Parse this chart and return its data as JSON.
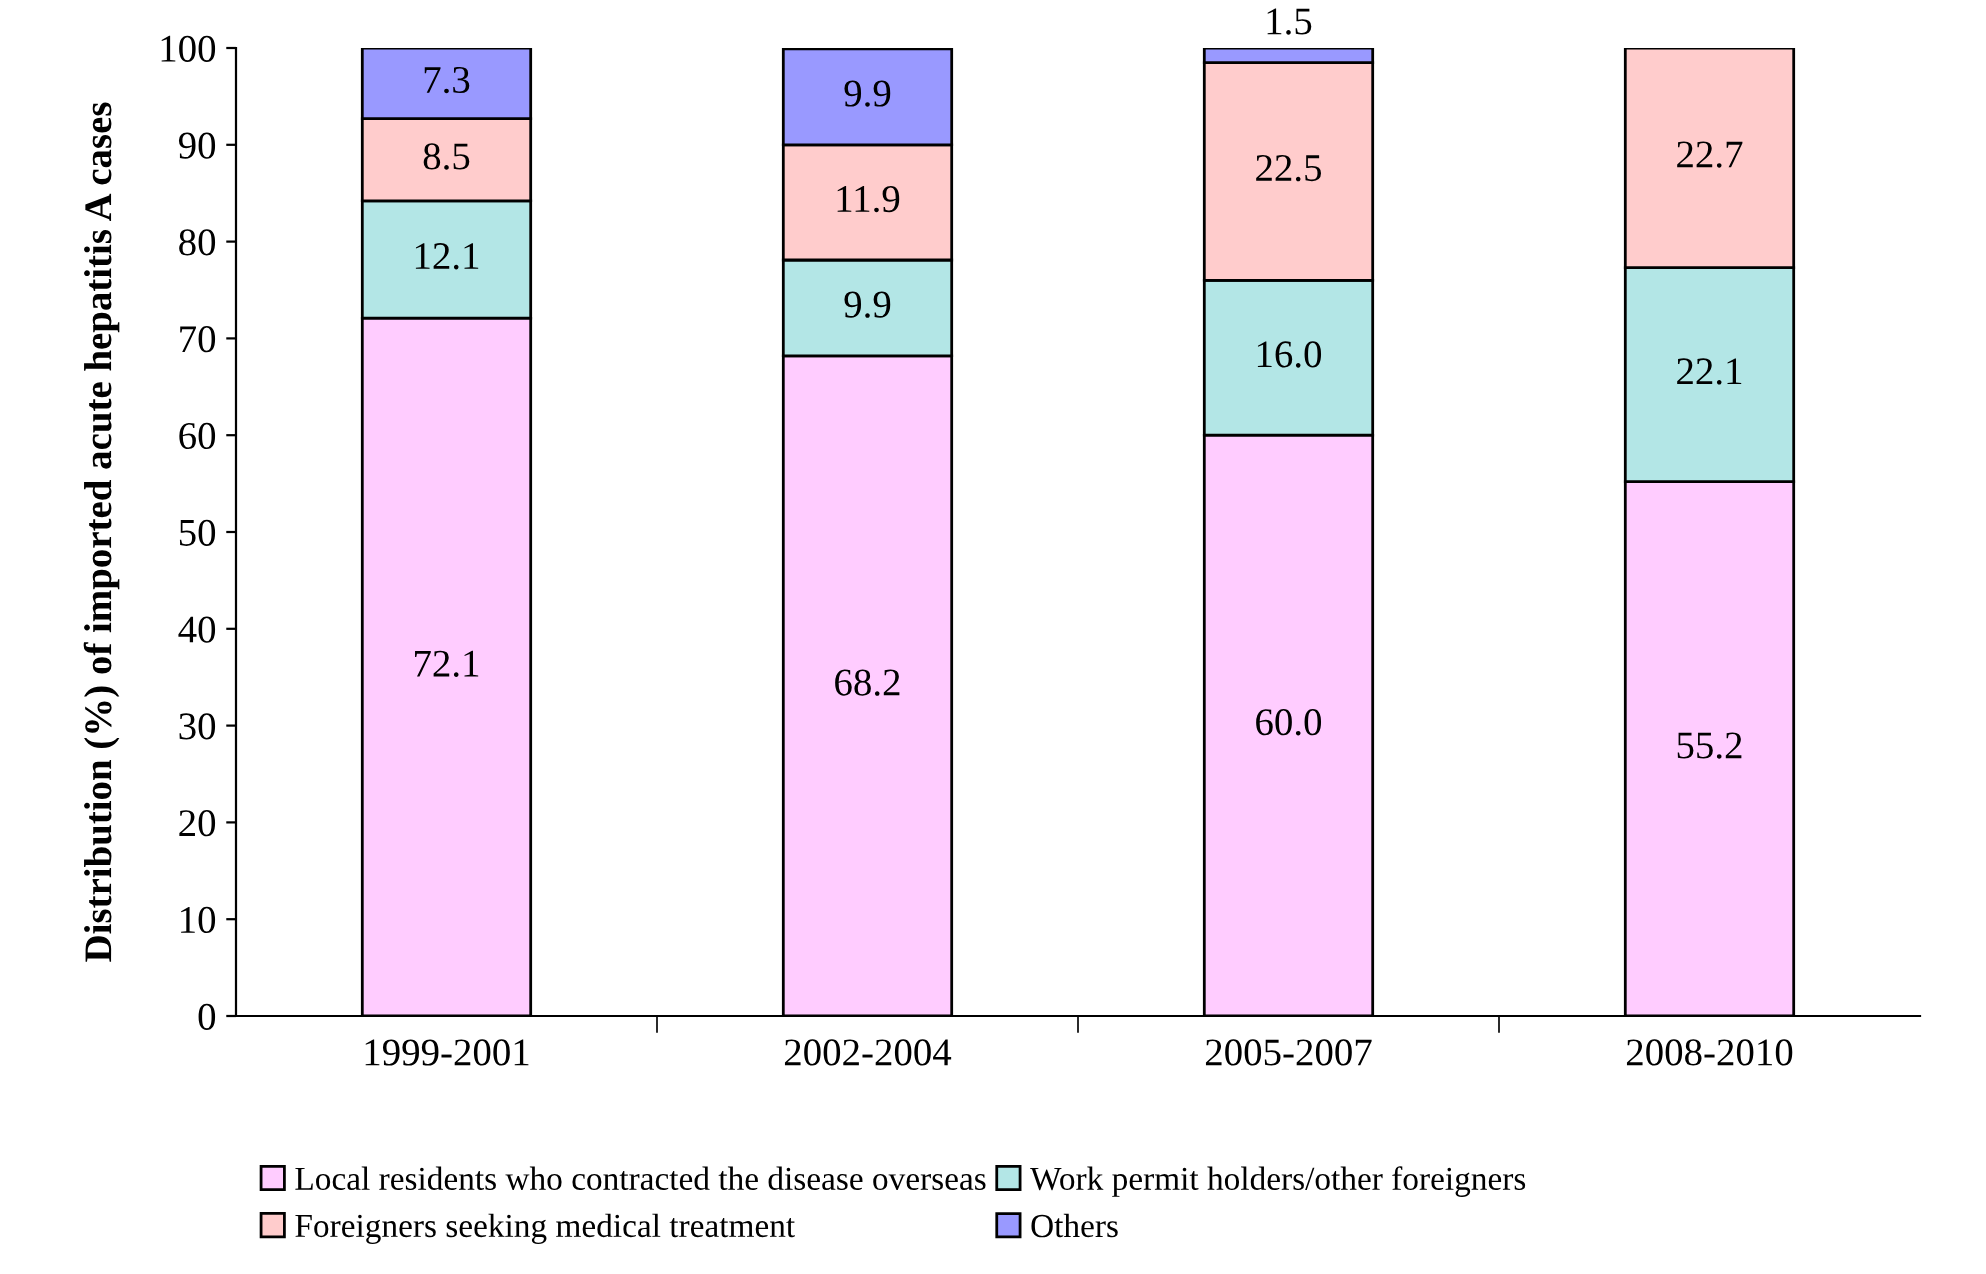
{
  "chart_data": {
    "type": "bar",
    "stacked": true,
    "ylabel": "Distribution (%) of imported acute hepatitis A cases",
    "categories": [
      "1999-2001",
      "2002-2004",
      "2005-2007",
      "2008-2010"
    ],
    "series": [
      {
        "name": "Local residents who contracted the disease overseas",
        "color": "#ffccff",
        "values": [
          72.1,
          68.2,
          60.0,
          55.2
        ],
        "value_labels": [
          "72.1",
          "68.2",
          "60.0",
          "55.2"
        ]
      },
      {
        "name": "Work permit holders/other foreigners",
        "color": "#b3e6e6",
        "values": [
          12.1,
          9.9,
          16.0,
          22.1
        ],
        "value_labels": [
          "12.1",
          "9.9",
          "16.0",
          "22.1"
        ]
      },
      {
        "name": "Foreigners seeking medical treatment",
        "color": "#ffcccc",
        "values": [
          8.5,
          11.9,
          22.5,
          22.7
        ],
        "value_labels": [
          "8.5",
          "11.9",
          "22.5",
          "22.7"
        ]
      },
      {
        "name": "Others",
        "color": "#9999ff",
        "values": [
          7.3,
          9.9,
          1.5,
          null
        ],
        "value_labels": [
          "7.3",
          "9.9",
          "1.5",
          null
        ]
      }
    ],
    "ylim": [
      0,
      100
    ],
    "yticks": [
      0,
      10,
      20,
      30,
      40,
      50,
      60,
      70,
      80,
      90,
      100
    ],
    "grid": false,
    "legend": "bottom"
  }
}
